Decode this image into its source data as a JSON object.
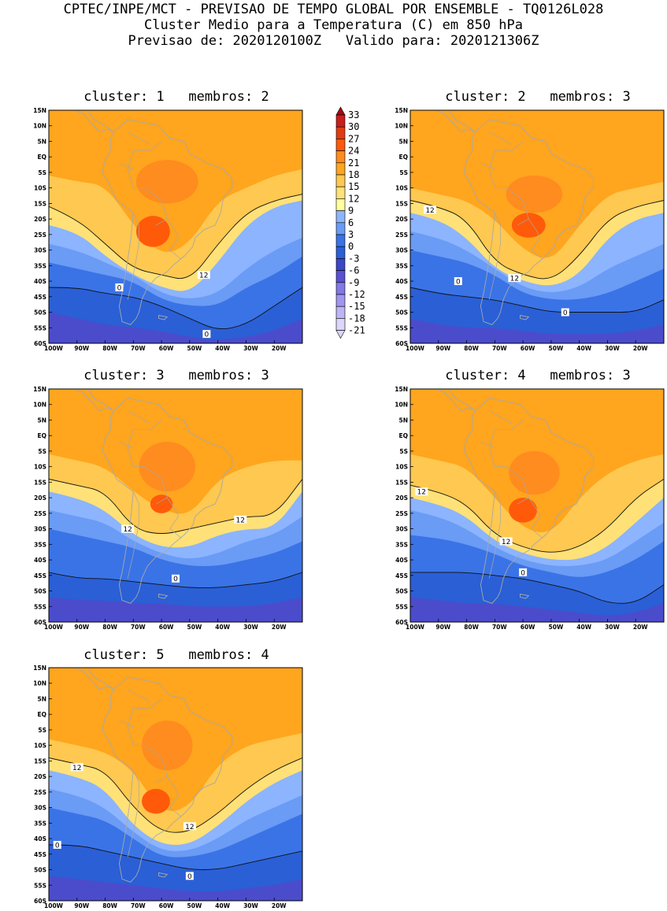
{
  "header": {
    "line1": "CPTEC/INPE/MCT - PREVISAO DE TEMPO GLOBAL POR ENSEMBLE - TQ0126L028",
    "line2": "Cluster Medio para a Temperatura (C) em 850 hPa",
    "line3": "Previsao de: 2020120100Z   Valido para: 2020121306Z"
  },
  "lat_labels": [
    "15N",
    "10N",
    "5N",
    "EQ",
    "5S",
    "10S",
    "15S",
    "20S",
    "25S",
    "30S",
    "35S",
    "40S",
    "45S",
    "50S",
    "55S",
    "60S"
  ],
  "lon_labels": [
    "100W",
    "90W",
    "80W",
    "70W",
    "60W",
    "50W",
    "40W",
    "30W",
    "20W"
  ],
  "legend": {
    "levels": [
      "33",
      "30",
      "27",
      "24",
      "21",
      "18",
      "15",
      "12",
      "9",
      "6",
      "3",
      "0",
      "-3",
      "-6",
      "-9",
      "-12",
      "-15",
      "-18",
      "-21"
    ],
    "colors": [
      "#a50a14",
      "#c81e1e",
      "#e03c14",
      "#ff5a0a",
      "#ff8c1e",
      "#ffa51e",
      "#ffc850",
      "#ffe178",
      "#ffff9e",
      "#8cb4ff",
      "#6a9bf5",
      "#3a73e6",
      "#2a5fd6",
      "#3c46c8",
      "#5a50d2",
      "#8278e6",
      "#a096f0",
      "#bdb4f5",
      "#dcd6fa"
    ]
  },
  "panels": [
    {
      "title": "cluster: 1   membros: 2",
      "contour_labels": [
        "12",
        "0",
        "0"
      ]
    },
    {
      "title": "cluster: 2   membros: 3",
      "contour_labels": [
        "12",
        "12",
        "0",
        "0"
      ]
    },
    {
      "title": "cluster: 3   membros: 3",
      "contour_labels": [
        "12",
        "12",
        "0"
      ]
    },
    {
      "title": "cluster: 4   membros: 3",
      "contour_labels": [
        "12",
        "12",
        "0"
      ]
    },
    {
      "title": "cluster: 5   membros: 4",
      "contour_labels": [
        "12",
        "12",
        "0",
        "0"
      ]
    }
  ]
}
